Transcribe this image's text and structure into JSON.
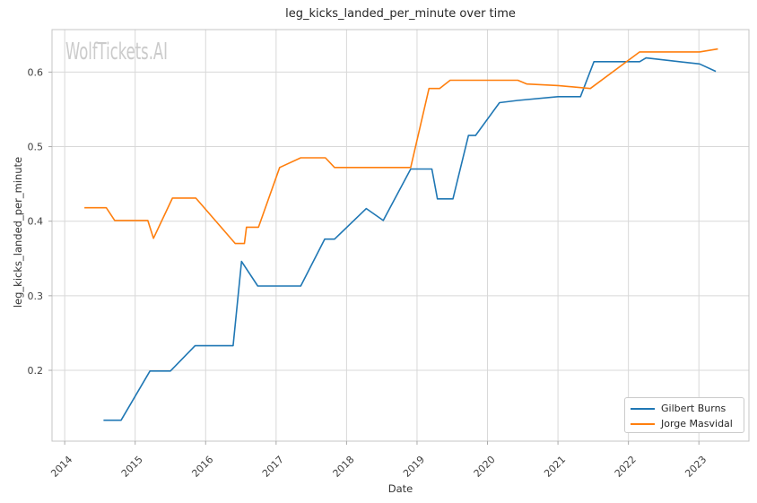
{
  "watermark": "WolfTickets.AI",
  "chart_data": {
    "type": "line",
    "title": "leg_kicks_landed_per_minute over time",
    "xlabel": "Date",
    "ylabel": "leg_kicks_landed_per_minute",
    "xlim": [
      2013.82,
      2023.71
    ],
    "ylim": [
      0.105,
      0.657
    ],
    "x_ticks": [
      2014,
      2015,
      2016,
      2017,
      2018,
      2019,
      2020,
      2021,
      2022,
      2023
    ],
    "x_tick_labels": [
      "2014",
      "2015",
      "2016",
      "2017",
      "2018",
      "2019",
      "2020",
      "2021",
      "2022",
      "2023"
    ],
    "y_ticks": [
      0.2,
      0.3,
      0.4,
      0.5,
      0.6
    ],
    "y_tick_labels": [
      "0.2",
      "0.3",
      "0.4",
      "0.5",
      "0.6"
    ],
    "grid": true,
    "legend_position": "lower right",
    "series": [
      {
        "name": "Gilbert Burns",
        "color": "#1f77b4",
        "points": [
          [
            2014.55,
            0.133
          ],
          [
            2014.8,
            0.133
          ],
          [
            2015.21,
            0.199
          ],
          [
            2015.5,
            0.199
          ],
          [
            2015.85,
            0.233
          ],
          [
            2016.39,
            0.233
          ],
          [
            2016.51,
            0.346
          ],
          [
            2016.74,
            0.313
          ],
          [
            2017.35,
            0.313
          ],
          [
            2017.69,
            0.376
          ],
          [
            2017.83,
            0.376
          ],
          [
            2018.28,
            0.417
          ],
          [
            2018.52,
            0.401
          ],
          [
            2018.91,
            0.47
          ],
          [
            2019.21,
            0.47
          ],
          [
            2019.29,
            0.43
          ],
          [
            2019.51,
            0.43
          ],
          [
            2019.73,
            0.515
          ],
          [
            2019.83,
            0.515
          ],
          [
            2020.17,
            0.559
          ],
          [
            2020.43,
            0.562
          ],
          [
            2021.0,
            0.567
          ],
          [
            2021.32,
            0.567
          ],
          [
            2021.51,
            0.614
          ],
          [
            2022.16,
            0.614
          ],
          [
            2022.25,
            0.619
          ],
          [
            2023.01,
            0.611
          ],
          [
            2023.24,
            0.601
          ]
        ]
      },
      {
        "name": "Jorge Masvidal",
        "color": "#ff7f0e",
        "points": [
          [
            2014.28,
            0.418
          ],
          [
            2014.59,
            0.418
          ],
          [
            2014.71,
            0.401
          ],
          [
            2015.18,
            0.401
          ],
          [
            2015.26,
            0.377
          ],
          [
            2015.53,
            0.431
          ],
          [
            2015.86,
            0.431
          ],
          [
            2016.42,
            0.37
          ],
          [
            2016.55,
            0.37
          ],
          [
            2016.58,
            0.392
          ],
          [
            2016.75,
            0.392
          ],
          [
            2017.05,
            0.472
          ],
          [
            2017.35,
            0.485
          ],
          [
            2017.7,
            0.485
          ],
          [
            2017.83,
            0.472
          ],
          [
            2018.91,
            0.472
          ],
          [
            2019.17,
            0.578
          ],
          [
            2019.32,
            0.578
          ],
          [
            2019.47,
            0.589
          ],
          [
            2020.43,
            0.589
          ],
          [
            2020.56,
            0.584
          ],
          [
            2021.0,
            0.582
          ],
          [
            2021.46,
            0.578
          ],
          [
            2022.16,
            0.627
          ],
          [
            2023.01,
            0.627
          ],
          [
            2023.27,
            0.631
          ]
        ]
      }
    ]
  },
  "colors": {
    "grid": "#d8d8d8",
    "spine": "#c4c4c4",
    "tick_mark": "#aaaaaa",
    "tick_label": "#404040",
    "title": "#262626",
    "watermark": "#cbcbcb",
    "legend_border": "#cbcbcb"
  }
}
